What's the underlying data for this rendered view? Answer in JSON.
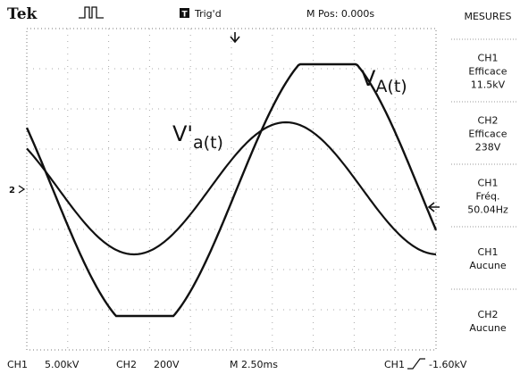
{
  "header": {
    "brand": "Tek",
    "trigger": "Trig'd",
    "position": "M Pos: 0.000s"
  },
  "measures": {
    "title": "MESURES",
    "items": [
      {
        "channel": "CH1",
        "label": "Efficace",
        "value": "11.5kV"
      },
      {
        "channel": "CH2",
        "label": "Efficace",
        "value": "238V"
      },
      {
        "channel": "CH1",
        "label": "Fréq.",
        "value": "50.04Hz"
      },
      {
        "channel": "CH1",
        "label": "Aucune"
      },
      {
        "channel": "CH2",
        "label": "Aucune"
      }
    ]
  },
  "traces": {
    "primary": {
      "main": "V",
      "sub": "A(t)"
    },
    "secondary": {
      "main": "V'",
      "sub": "a(t)"
    },
    "ch2_marker": "2"
  },
  "footer": {
    "ch1": "CH1",
    "ch1_scale": "5.00kV",
    "ch2": "CH2",
    "ch2_scale": "200V",
    "timebase": "M 2.50ms",
    "trigger_channel": "CH1",
    "trigger_level": "-1.60kV"
  }
}
